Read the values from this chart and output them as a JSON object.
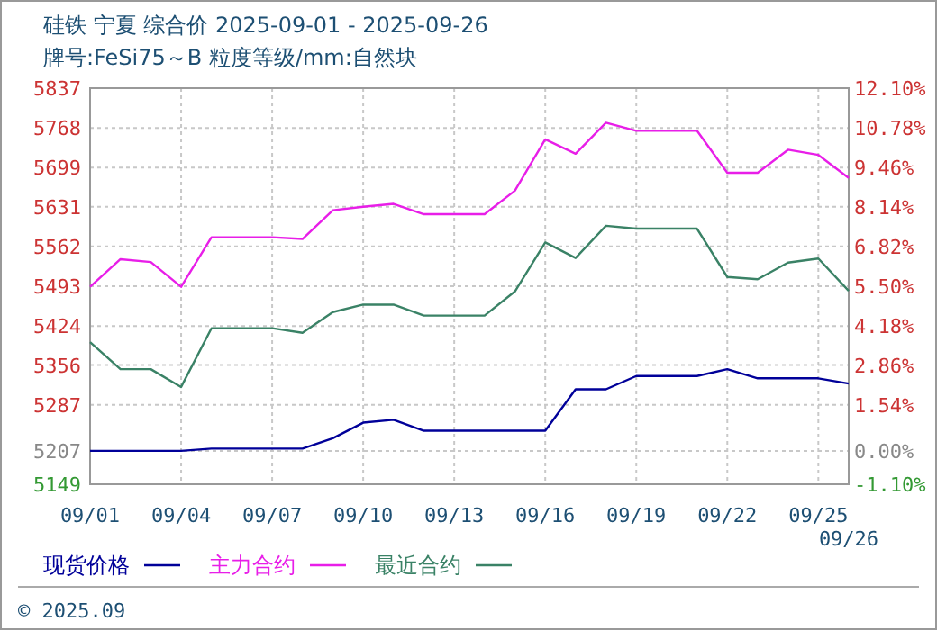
{
  "chart_data": {
    "type": "line",
    "title": "硅铁 宁夏 综合价 2025-09-01 - 2025-09-26",
    "subtitle": "牌号:FeSi75～B 粒度等级/mm:自然块",
    "categories": [
      "09/01",
      null,
      null,
      "09/04",
      null,
      null,
      "09/07",
      null,
      null,
      "09/10",
      null,
      null,
      "09/13",
      null,
      null,
      "09/16",
      null,
      null,
      "09/19",
      null,
      null,
      "09/22",
      null,
      null,
      "09/25",
      "09/26"
    ],
    "series": [
      {
        "name": "现货价格",
        "color": "#000099",
        "values": [
          5207,
          5207,
          5207,
          5207,
          5211,
          5211,
          5211,
          5211,
          5229,
          5256,
          5261,
          5242,
          5242,
          5242,
          5242,
          5242,
          5314,
          5314,
          5337,
          5337,
          5337,
          5349,
          5333,
          5333,
          5333,
          5324
        ]
      },
      {
        "name": "主力合约",
        "color": "#e81ee8",
        "values": [
          5492,
          5540,
          5535,
          5492,
          5578,
          5578,
          5578,
          5575,
          5625,
          5631,
          5636,
          5618,
          5618,
          5618,
          5659,
          5748,
          5723,
          5777,
          5763,
          5763,
          5763,
          5690,
          5690,
          5730,
          5721,
          5681
        ]
      },
      {
        "name": "最近合约",
        "color": "#3a8266",
        "values": [
          5396,
          5349,
          5349,
          5318,
          5420,
          5420,
          5420,
          5412,
          5448,
          5461,
          5461,
          5442,
          5442,
          5442,
          5484,
          5569,
          5542,
          5598,
          5593,
          5593,
          5593,
          5509,
          5505,
          5534,
          5541,
          5485
        ]
      }
    ],
    "ylim": [
      5149,
      5837
    ],
    "yticks": [
      5149,
      5207,
      5287,
      5356,
      5424,
      5493,
      5562,
      5631,
      5699,
      5768,
      5837
    ],
    "y2lim": [
      -1.1,
      12.1
    ],
    "y2ticks": [
      {
        "value": -1.1,
        "label": "-1.10%"
      },
      {
        "value": 0,
        "label": "0.00%"
      },
      {
        "value": 1.54,
        "label": "1.54%"
      },
      {
        "value": 2.86,
        "label": "2.86%"
      },
      {
        "value": 4.18,
        "label": "4.18%"
      },
      {
        "value": 5.5,
        "label": "5.50%"
      },
      {
        "value": 6.82,
        "label": "6.82%"
      },
      {
        "value": 8.14,
        "label": "8.14%"
      },
      {
        "value": 9.46,
        "label": "9.46%"
      },
      {
        "value": 10.78,
        "label": "10.78%"
      },
      {
        "value": 12.1,
        "label": "12.10%"
      }
    ],
    "grid": true,
    "legend": "bottom",
    "marker": "none",
    "line_style": "solid",
    "annotations": [
      "© 2025.09"
    ]
  }
}
